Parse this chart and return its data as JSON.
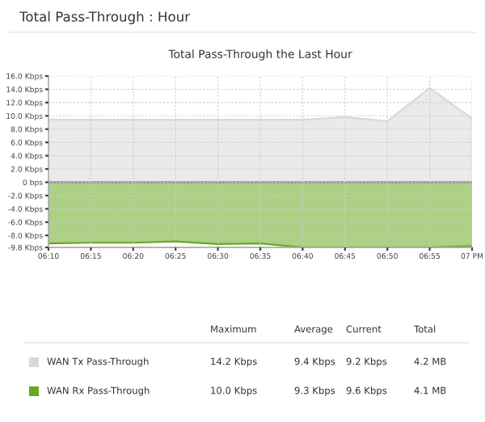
{
  "chart_data": {
    "type": "area",
    "title": "Total Pass-Through : Hour",
    "subtitle": "Total Pass-Through the Last Hour",
    "categories": [
      "06:10",
      "06:15",
      "06:20",
      "06:25",
      "06:30",
      "06:35",
      "06:40",
      "06:45",
      "06:50",
      "06:55",
      "07 PM"
    ],
    "series": [
      {
        "name": "WAN Tx Pass-Through",
        "color": "#d9d9d9",
        "values": [
          9.4,
          9.4,
          9.4,
          9.4,
          9.4,
          9.4,
          9.4,
          9.8,
          9.2,
          14.2,
          9.6
        ]
      },
      {
        "name": "WAN Rx Pass-Through",
        "color": "#6aa823",
        "values": [
          -9.2,
          -9.1,
          -9.1,
          -8.9,
          -9.3,
          -9.2,
          -9.8,
          -9.8,
          -9.8,
          -9.8,
          -9.6
        ]
      }
    ],
    "ylim": [
      -9.8,
      16
    ],
    "yticks": [
      {
        "value": -9.8,
        "label": "-9.8 Kbps"
      },
      {
        "value": -8,
        "label": "-8.0 Kbps"
      },
      {
        "value": -6,
        "label": "-6.0 Kbps"
      },
      {
        "value": -4,
        "label": "-4.0 Kbps"
      },
      {
        "value": -2,
        "label": "-2.0 Kbps"
      },
      {
        "value": 0,
        "label": "0 bps"
      },
      {
        "value": 2,
        "label": "2.0 Kbps"
      },
      {
        "value": 4,
        "label": "4.0 Kbps"
      },
      {
        "value": 6,
        "label": "6.0 Kbps"
      },
      {
        "value": 8,
        "label": "8.0 Kbps"
      },
      {
        "value": 10,
        "label": "10.0 Kbps"
      },
      {
        "value": 12,
        "label": "12.0 Kbps"
      },
      {
        "value": 14,
        "label": "14.0 Kbps"
      },
      {
        "value": 16,
        "label": "16.0 Kbps"
      }
    ],
    "grid": true,
    "legend": "bottom",
    "annotations": [
      "Maximum",
      "Average",
      "Current",
      "Total",
      "14.2 Kbps",
      "9.4 Kbps",
      "9.2 Kbps",
      "4.2 MB",
      "10.0 Kbps",
      "9.3 Kbps",
      "9.6 Kbps",
      "4.1 MB"
    ]
  }
}
